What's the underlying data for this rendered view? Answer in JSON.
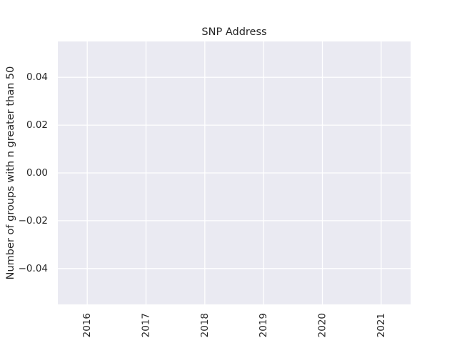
{
  "chart_data": {
    "type": "line",
    "title": "SNP Address",
    "xlabel": "",
    "ylabel": "Number of groups with n greater than 50",
    "x_ticks": [
      "2016",
      "2017",
      "2018",
      "2019",
      "2020",
      "2021"
    ],
    "y_ticks": [
      "0.04",
      "0.02",
      "0.00",
      "−0.02",
      "−0.04"
    ],
    "y_tick_values": [
      0.04,
      0.02,
      0.0,
      -0.02,
      -0.04
    ],
    "xlim": [
      2015.5,
      2021.5
    ],
    "ylim": [
      -0.055,
      0.055
    ],
    "series": [],
    "grid": true,
    "style": {
      "plot_background": "#eaeaf2",
      "grid_color": "#ffffff",
      "text_color": "#262626"
    }
  }
}
